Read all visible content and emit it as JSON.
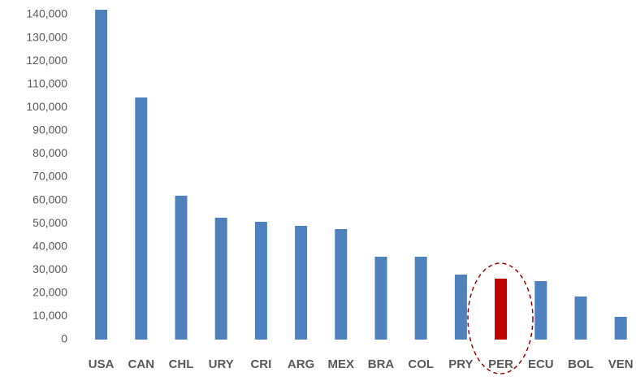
{
  "chart_data": {
    "type": "bar",
    "categories": [
      "USA",
      "CAN",
      "CHL",
      "URY",
      "CRI",
      "ARG",
      "MEX",
      "BRA",
      "COL",
      "PRY",
      "PER",
      "ECU",
      "BOL",
      "VEN"
    ],
    "values": [
      142100,
      104300,
      62000,
      52500,
      50750,
      49000,
      47600,
      35700,
      35700,
      28000,
      26250,
      25200,
      18550,
      9800
    ],
    "colors": [
      "#4f81bd",
      "#4f81bd",
      "#4f81bd",
      "#4f81bd",
      "#4f81bd",
      "#4f81bd",
      "#4f81bd",
      "#4f81bd",
      "#4f81bd",
      "#4f81bd",
      "#c00000",
      "#4f81bd",
      "#4f81bd",
      "#4f81bd"
    ],
    "ylim": [
      0,
      140000
    ],
    "yticks": [
      0,
      {
        "value": 10000,
        "label": "10,000"
      },
      {
        "value": 20000,
        "label": "20,000"
      },
      {
        "value": 30000,
        "label": "30,000"
      },
      {
        "value": 40000,
        "label": "40,000"
      },
      {
        "value": 50000,
        "label": "50,000"
      },
      {
        "value": 60000,
        "label": "60,000"
      },
      {
        "value": 70000,
        "label": "70,000"
      },
      {
        "value": 80000,
        "label": "80,000"
      },
      {
        "value": 90000,
        "label": "90,000"
      },
      {
        "value": 100000,
        "label": "100,000"
      },
      {
        "value": 110000,
        "label": "110,000"
      },
      {
        "value": 120000,
        "label": "120,000"
      },
      {
        "value": 130000,
        "label": "130,000"
      },
      {
        "value": 140000,
        "label": "140,000"
      }
    ],
    "grid": false
  }
}
